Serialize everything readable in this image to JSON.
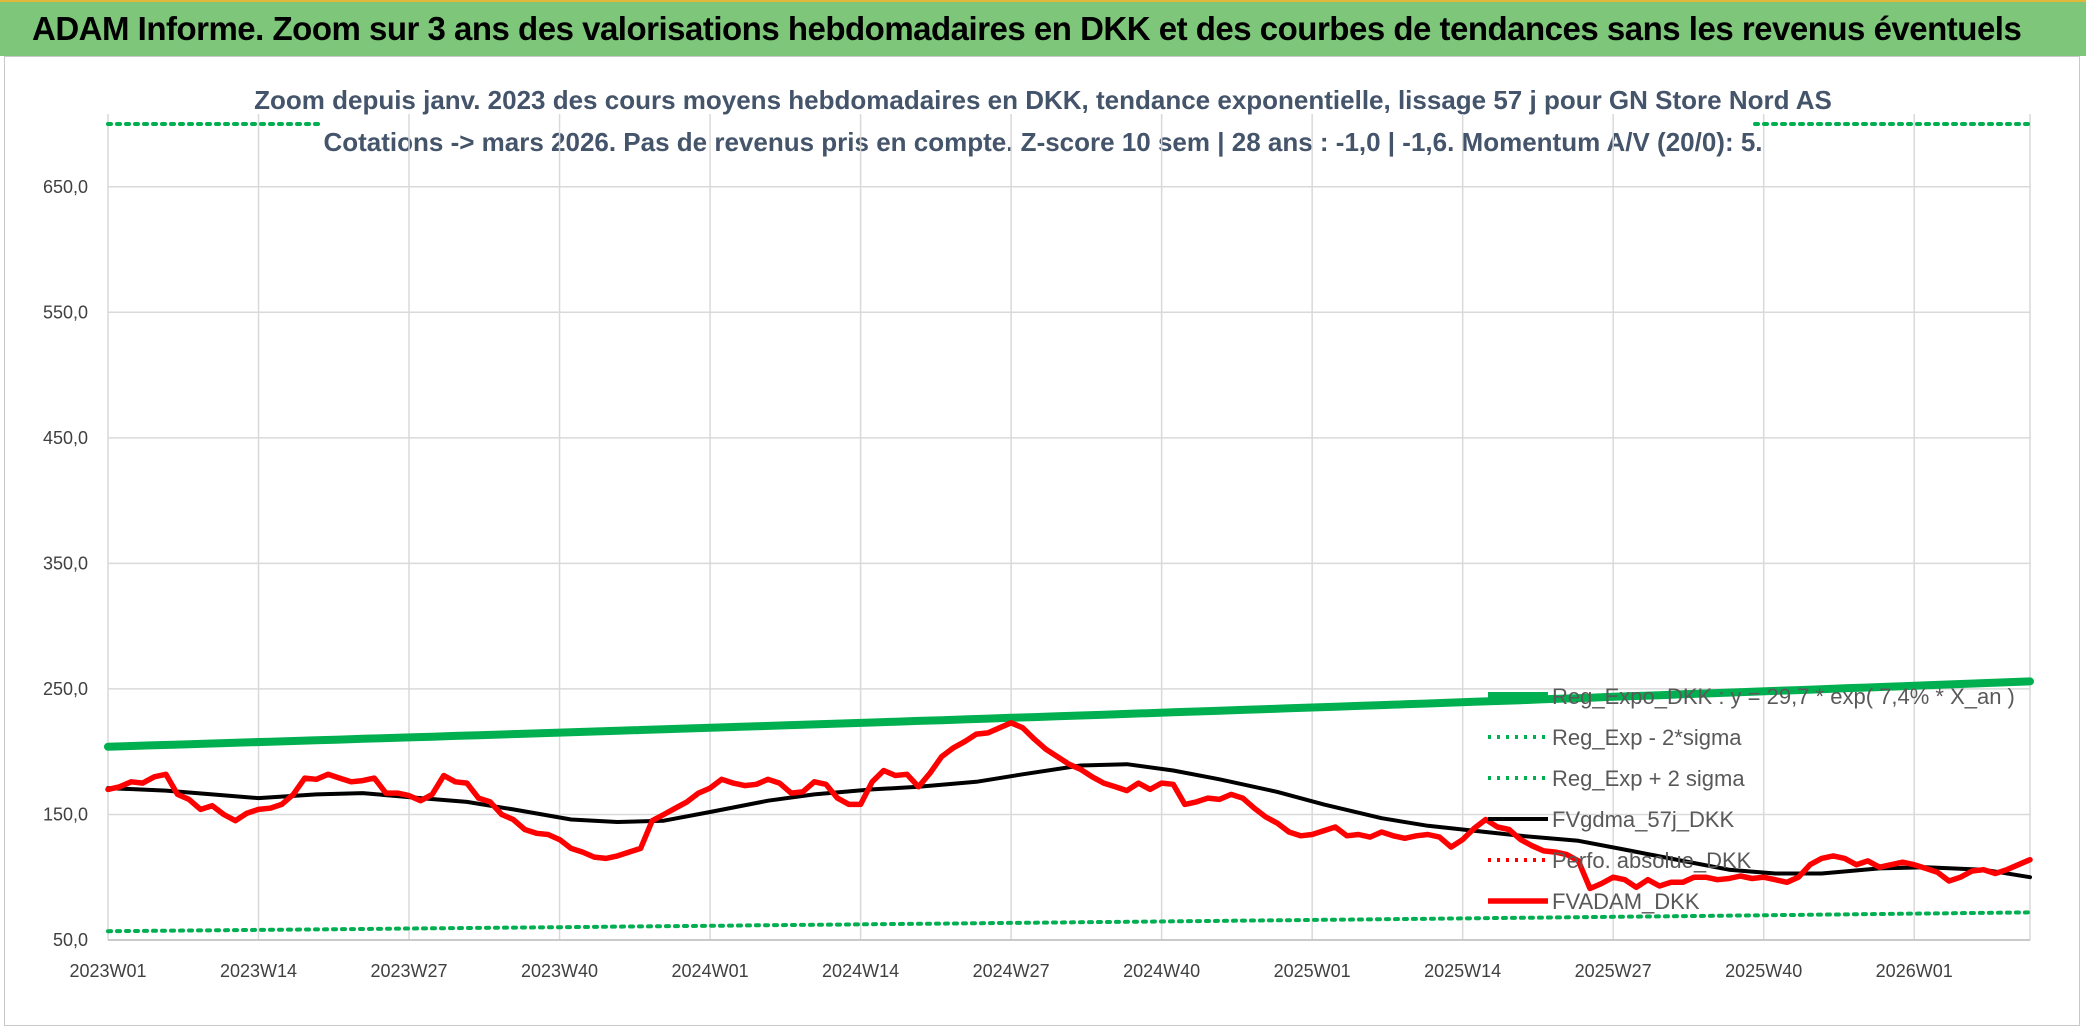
{
  "header": {
    "title": "ADAM Informe. Zoom sur 3 ans des valorisations hebdomadaires en DKK et des courbes de tendances sans les revenus éventuels"
  },
  "chart_data": {
    "type": "line",
    "title_line1": "Zoom depuis janv. 2023 des cours moyens hebdomadaires en DKK, tendance exponentielle, lissage 57 j pour GN Store Nord AS",
    "title_line2": "Cotations -> mars 2026. Pas de revenus pris en compte. Z-score 10 sem | 28 ans : -1,0 | -1,6. Momentum A/V (20/0): 5.",
    "x_tick_labels": [
      "2023W01",
      "2023W14",
      "2023W27",
      "2023W40",
      "2024W01",
      "2024W14",
      "2024W27",
      "2024W40",
      "2025W01",
      "2025W14",
      "2025W27",
      "2025W40",
      "2026W01"
    ],
    "y_tick_labels": [
      "50,0",
      "150,0",
      "250,0",
      "350,0",
      "450,0",
      "550,0",
      "650,0"
    ],
    "y_ticks": [
      50,
      150,
      250,
      350,
      450,
      550,
      650
    ],
    "ylim": [
      50,
      700
    ],
    "n_weeks": 167,
    "grid": true,
    "legend_position": "bottom-right",
    "series": [
      {
        "name": "Reg_Expo_DKK : y = 29,7 * exp( 7,4% * X_an )",
        "color": "#00b050",
        "style": "thick",
        "points": [
          [
            0,
            204
          ],
          [
            166,
            256
          ]
        ]
      },
      {
        "name": "Reg_Exp - 2*sigma",
        "color": "#00b050",
        "style": "dotted",
        "points": [
          [
            0,
            57
          ],
          [
            166,
            72
          ]
        ]
      },
      {
        "name": "Reg_Exp + 2 sigma",
        "color": "#00b050",
        "style": "dotted",
        "points": [
          [
            0,
            700
          ],
          [
            166,
            700
          ]
        ]
      },
      {
        "name": "FVgdma_57j_DKK",
        "color": "#000000",
        "style": "solid",
        "points": [
          [
            0,
            171
          ],
          [
            5,
            169
          ],
          [
            9,
            166
          ],
          [
            13,
            163
          ],
          [
            18,
            166
          ],
          [
            22,
            167
          ],
          [
            27,
            163
          ],
          [
            31,
            160
          ],
          [
            35,
            154
          ],
          [
            40,
            146
          ],
          [
            44,
            144
          ],
          [
            48,
            145
          ],
          [
            52,
            152
          ],
          [
            57,
            161
          ],
          [
            61,
            166
          ],
          [
            66,
            170
          ],
          [
            70,
            172
          ],
          [
            75,
            176
          ],
          [
            79,
            182
          ],
          [
            84,
            189
          ],
          [
            88,
            190
          ],
          [
            92,
            185
          ],
          [
            96,
            178
          ],
          [
            101,
            168
          ],
          [
            105,
            158
          ],
          [
            110,
            147
          ],
          [
            114,
            141
          ],
          [
            118,
            137
          ],
          [
            122,
            133
          ],
          [
            127,
            129
          ],
          [
            131,
            122
          ],
          [
            136,
            113
          ],
          [
            140,
            106
          ],
          [
            144,
            103
          ],
          [
            148,
            103
          ],
          [
            153,
            107
          ],
          [
            157,
            108
          ],
          [
            162,
            106
          ],
          [
            166,
            100
          ]
        ]
      },
      {
        "name": "Perfo. absolue_DKK",
        "color": "#ff0000",
        "style": "dotted",
        "points": []
      },
      {
        "name": "FVADAM_DKK",
        "color": "#ff0000",
        "style": "thick-red",
        "points": [
          [
            0,
            170
          ],
          [
            1,
            172
          ],
          [
            2,
            176
          ],
          [
            3,
            175
          ],
          [
            4,
            180
          ],
          [
            5,
            182
          ],
          [
            6,
            166
          ],
          [
            7,
            162
          ],
          [
            8,
            154
          ],
          [
            9,
            157
          ],
          [
            10,
            150
          ],
          [
            11,
            145
          ],
          [
            12,
            151
          ],
          [
            13,
            154
          ],
          [
            14,
            155
          ],
          [
            15,
            158
          ],
          [
            16,
            166
          ],
          [
            17,
            179
          ],
          [
            18,
            178
          ],
          [
            19,
            182
          ],
          [
            20,
            179
          ],
          [
            21,
            176
          ],
          [
            22,
            177
          ],
          [
            23,
            179
          ],
          [
            24,
            167
          ],
          [
            25,
            167
          ],
          [
            26,
            165
          ],
          [
            27,
            161
          ],
          [
            28,
            166
          ],
          [
            29,
            181
          ],
          [
            30,
            176
          ],
          [
            31,
            175
          ],
          [
            32,
            163
          ],
          [
            33,
            160
          ],
          [
            34,
            150
          ],
          [
            35,
            146
          ],
          [
            36,
            138
          ],
          [
            37,
            135
          ],
          [
            38,
            134
          ],
          [
            39,
            130
          ],
          [
            40,
            123
          ],
          [
            41,
            120
          ],
          [
            42,
            116
          ],
          [
            43,
            115
          ],
          [
            44,
            117
          ],
          [
            45,
            120
          ],
          [
            46,
            123
          ],
          [
            47,
            145
          ],
          [
            48,
            150
          ],
          [
            49,
            155
          ],
          [
            50,
            160
          ],
          [
            51,
            167
          ],
          [
            52,
            171
          ],
          [
            53,
            178
          ],
          [
            54,
            175
          ],
          [
            55,
            173
          ],
          [
            56,
            174
          ],
          [
            57,
            178
          ],
          [
            58,
            175
          ],
          [
            59,
            167
          ],
          [
            60,
            168
          ],
          [
            61,
            176
          ],
          [
            62,
            174
          ],
          [
            63,
            163
          ],
          [
            64,
            158
          ],
          [
            65,
            158
          ],
          [
            66,
            176
          ],
          [
            67,
            185
          ],
          [
            68,
            181
          ],
          [
            69,
            182
          ],
          [
            70,
            172
          ],
          [
            71,
            183
          ],
          [
            72,
            196
          ],
          [
            73,
            203
          ],
          [
            74,
            208
          ],
          [
            75,
            214
          ],
          [
            76,
            215
          ],
          [
            77,
            219
          ],
          [
            78,
            223
          ],
          [
            79,
            219
          ],
          [
            80,
            210
          ],
          [
            81,
            202
          ],
          [
            82,
            196
          ],
          [
            83,
            190
          ],
          [
            84,
            186
          ],
          [
            85,
            180
          ],
          [
            86,
            175
          ],
          [
            87,
            172
          ],
          [
            88,
            169
          ],
          [
            89,
            175
          ],
          [
            90,
            170
          ],
          [
            91,
            175
          ],
          [
            92,
            174
          ],
          [
            93,
            158
          ],
          [
            94,
            160
          ],
          [
            95,
            163
          ],
          [
            96,
            162
          ],
          [
            97,
            166
          ],
          [
            98,
            163
          ],
          [
            99,
            155
          ],
          [
            100,
            148
          ],
          [
            101,
            143
          ],
          [
            102,
            136
          ],
          [
            103,
            133
          ],
          [
            104,
            134
          ],
          [
            105,
            137
          ],
          [
            106,
            140
          ],
          [
            107,
            133
          ],
          [
            108,
            134
          ],
          [
            109,
            132
          ],
          [
            110,
            136
          ],
          [
            111,
            133
          ],
          [
            112,
            131
          ],
          [
            113,
            133
          ],
          [
            114,
            134
          ],
          [
            115,
            132
          ],
          [
            116,
            124
          ],
          [
            117,
            130
          ],
          [
            118,
            139
          ],
          [
            119,
            146
          ],
          [
            120,
            140
          ],
          [
            121,
            138
          ],
          [
            122,
            130
          ],
          [
            123,
            125
          ],
          [
            124,
            121
          ],
          [
            125,
            120
          ],
          [
            126,
            118
          ],
          [
            127,
            113
          ],
          [
            128,
            91
          ],
          [
            129,
            95
          ],
          [
            130,
            100
          ],
          [
            131,
            98
          ],
          [
            132,
            92
          ],
          [
            133,
            98
          ],
          [
            134,
            93
          ],
          [
            135,
            96
          ],
          [
            136,
            96
          ],
          [
            137,
            100
          ],
          [
            138,
            100
          ],
          [
            139,
            98
          ],
          [
            140,
            99
          ],
          [
            141,
            101
          ],
          [
            142,
            99
          ],
          [
            143,
            100
          ],
          [
            144,
            98
          ],
          [
            145,
            96
          ],
          [
            146,
            100
          ],
          [
            147,
            110
          ],
          [
            148,
            115
          ],
          [
            149,
            117
          ],
          [
            150,
            115
          ],
          [
            151,
            110
          ],
          [
            152,
            113
          ],
          [
            153,
            108
          ],
          [
            154,
            110
          ],
          [
            155,
            112
          ],
          [
            156,
            110
          ],
          [
            157,
            107
          ],
          [
            158,
            104
          ],
          [
            159,
            97
          ],
          [
            160,
            100
          ],
          [
            161,
            105
          ],
          [
            162,
            106
          ],
          [
            163,
            103
          ],
          [
            164,
            106
          ],
          [
            165,
            110
          ],
          [
            166,
            114
          ]
        ]
      }
    ]
  }
}
